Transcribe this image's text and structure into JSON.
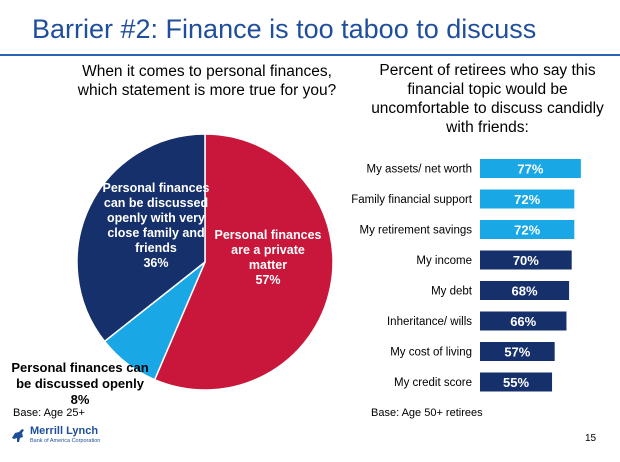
{
  "title": "Barrier #2: Finance is too taboo to discuss",
  "pie_question": "When it comes to personal finances, which statement is more true for you?",
  "bar_question": "Percent of retirees who say this financial topic would be uncomfortable to discuss candidly with friends:",
  "pie_labels": {
    "navy": [
      "Personal finances",
      "can be discussed",
      "openly with very",
      "close family and",
      "friends",
      "36%"
    ],
    "red": [
      "Personal finances",
      "are a private",
      "matter",
      "57%"
    ],
    "cyan": [
      "Personal finances can",
      "be discussed openly",
      "8%"
    ]
  },
  "base_left": "Base: Age 25+",
  "base_right": "Base: Age 50+ retirees",
  "logo": {
    "name": "Merrill Lynch",
    "sub": "Bank of America Corporation"
  },
  "page_number": "15",
  "colors": {
    "title": "#1f4f9c",
    "red": "#c8173a",
    "navy": "#16306b",
    "cyan": "#1aa7e6",
    "bar_light": "#1aa7e6",
    "bar_dark": "#16306b"
  },
  "chart_data": [
    {
      "type": "pie",
      "categories": [
        "Personal finances are a private matter",
        "Personal finances can be discussed openly",
        "Personal finances can be discussed openly with very close family and friends"
      ],
      "values": [
        57,
        8,
        36
      ],
      "unit": "%",
      "colors": [
        "#c8173a",
        "#1aa7e6",
        "#16306b"
      ]
    },
    {
      "type": "bar",
      "orientation": "horizontal",
      "categories": [
        "My assets/ net worth",
        "Family financial support",
        "My retirement savings",
        "My income",
        "My debt",
        "Inheritance/ wills",
        "My cost of living",
        "My credit score"
      ],
      "values": [
        77,
        72,
        72,
        70,
        68,
        66,
        57,
        55
      ],
      "value_labels": [
        "77%",
        "72%",
        "72%",
        "70%",
        "68%",
        "66%",
        "57%",
        "55%"
      ],
      "bar_colors": [
        "#1aa7e6",
        "#1aa7e6",
        "#1aa7e6",
        "#16306b",
        "#16306b",
        "#16306b",
        "#16306b",
        "#16306b"
      ],
      "unit": "%"
    }
  ]
}
